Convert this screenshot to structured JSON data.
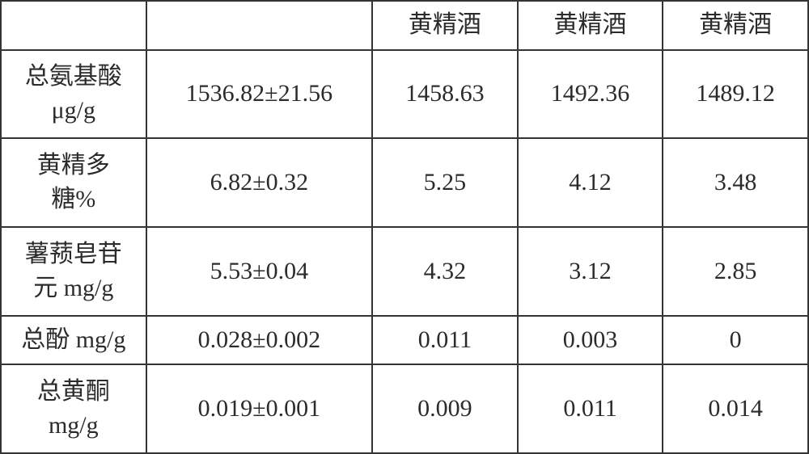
{
  "table": {
    "type": "table",
    "background_color": "#ffffff",
    "border_color": "#343434",
    "border_width": 2,
    "font_family": "SimSun, serif",
    "cell_fontsize": 30,
    "text_color": "#2b2b2b",
    "column_widths_pct": [
      18,
      28,
      18,
      18,
      18
    ],
    "header": {
      "c0": "",
      "c1": "",
      "c2": "黄精酒",
      "c3": "黄精酒",
      "c4": "黄精酒"
    },
    "rows": [
      {
        "label_line1": "总氨基酸",
        "label_line2": "μg/g",
        "v1": "1536.82±21.56",
        "v2": "1458.63",
        "v3": "1492.36",
        "v4": "1489.12"
      },
      {
        "label_line1": "黄精多",
        "label_line2": "糖%",
        "v1": "6.82±0.32",
        "v2": "5.25",
        "v3": "4.12",
        "v4": "3.48"
      },
      {
        "label_line1": "薯蓣皂苷",
        "label_line2": "元 mg/g",
        "v1": "5.53±0.04",
        "v2": "4.32",
        "v3": "3.12",
        "v4": "2.85"
      },
      {
        "label_line1": "总酚 mg/g",
        "label_line2": "",
        "v1": "0.028±0.002",
        "v2": "0.011",
        "v3": "0.003",
        "v4": "0"
      },
      {
        "label_line1": "总黄酮",
        "label_line2": "mg/g",
        "v1": "0.019±0.001",
        "v2": "0.009",
        "v3": "0.011",
        "v4": "0.014"
      }
    ]
  }
}
